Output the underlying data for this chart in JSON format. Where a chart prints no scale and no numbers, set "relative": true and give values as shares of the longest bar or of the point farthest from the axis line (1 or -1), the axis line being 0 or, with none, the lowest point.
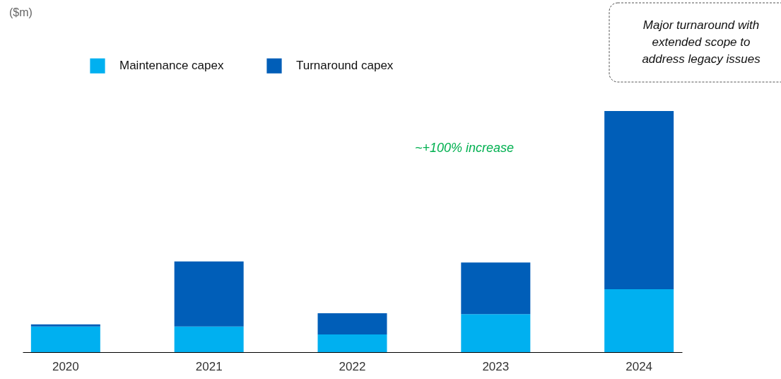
{
  "chart_data": {
    "type": "bar",
    "stacked": true,
    "relative": true,
    "categories": [
      "2020",
      "2021",
      "2022",
      "2023",
      "2024"
    ],
    "series": [
      {
        "name": "Maintenance capex",
        "color": "#00b0f0",
        "values": [
          0.106,
          0.106,
          0.073,
          0.158,
          0.261
        ]
      },
      {
        "name": "Turnaround capex",
        "color": "#005eb8",
        "values": [
          0.009,
          0.27,
          0.088,
          0.214,
          0.739
        ]
      }
    ],
    "annotations": [
      "($m)",
      "~+100% increase",
      "Major turnaround with extended scope to address legacy issues"
    ],
    "legend": "top left",
    "grid": false
  }
}
